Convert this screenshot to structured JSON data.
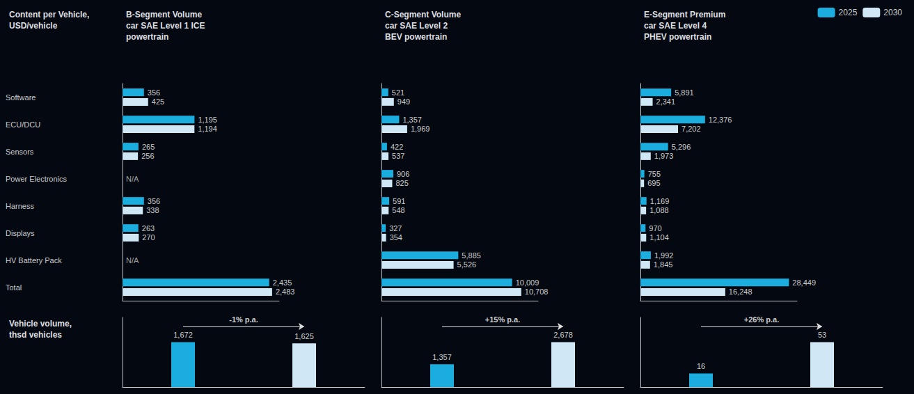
{
  "chart_data": [
    {
      "type": "bar",
      "orientation": "horizontal",
      "title": "B-Segment Volume\ncar SAE Level 1 ICE\npowertrain",
      "ylabel": "Content per Vehicle,\nUSD/vehicle",
      "categories": [
        "Software",
        "ECU/DCU",
        "Sensors",
        "Power Electronics",
        "Harness",
        "Displays",
        "HV Battery Pack",
        "Total"
      ],
      "series": [
        {
          "name": "2025",
          "color": "#1aadde",
          "values": [
            356,
            1195,
            265,
            null,
            356,
            263,
            null,
            2435
          ],
          "value_labels": [
            "356",
            "1,195",
            "265",
            null,
            "356",
            "263",
            null,
            "2,435"
          ]
        },
        {
          "name": "2030",
          "color": "#d0e8f5",
          "values": [
            425,
            1194,
            256,
            null,
            338,
            270,
            null,
            2483
          ],
          "value_labels": [
            "425",
            "1,194",
            "256",
            null,
            "338",
            "270",
            null,
            "2,483"
          ]
        }
      ],
      "annotations": [
        {
          "category": "Power Electronics",
          "text": "N/A"
        },
        {
          "category": "HV Battery Pack",
          "text": "N/A"
        }
      ],
      "xlim": [
        0,
        2600
      ],
      "grid": false,
      "data_labels": true,
      "tick_labels": "y"
    },
    {
      "type": "bar",
      "orientation": "horizontal",
      "title": "C-Segment Volume\ncar SAE Level 2\nBEV powertrain",
      "categories": [
        "Software",
        "ECU/DCU",
        "Sensors",
        "Power Electronics",
        "Harness",
        "Displays",
        "HV Battery Pack",
        "Total"
      ],
      "series": [
        {
          "name": "2025",
          "color": "#1aadde",
          "values": [
            521,
            1357,
            422,
            906,
            591,
            327,
            5885,
            10009
          ],
          "value_labels": [
            "521",
            "1,357",
            "422",
            "906",
            "591",
            "327",
            "5,885",
            "10,009"
          ]
        },
        {
          "name": "2030",
          "color": "#d0e8f5",
          "values": [
            949,
            1969,
            537,
            825,
            548,
            354,
            5526,
            10708
          ],
          "value_labels": [
            "949",
            "1,969",
            "537",
            "825",
            "548",
            "354",
            "5,526",
            "10,708"
          ]
        }
      ],
      "xlim": [
        0,
        12000
      ],
      "grid": false,
      "data_labels": true,
      "tick_labels": false
    },
    {
      "type": "bar",
      "orientation": "horizontal",
      "title": "E-Segment Premium\ncar SAE Level 4\nPHEV powertrain",
      "categories": [
        "Software",
        "ECU/DCU",
        "Sensors",
        "Power Electronics",
        "Harness",
        "Displays",
        "HV Battery Pack",
        "Total"
      ],
      "series": [
        {
          "name": "2025",
          "color": "#1aadde",
          "values": [
            5891,
            12376,
            5296,
            755,
            1169,
            970,
            1992,
            28449
          ],
          "value_labels": [
            "5,891",
            "12,376",
            "5,296",
            "755",
            "1,169",
            "970",
            "1,992",
            "28,449"
          ]
        },
        {
          "name": "2030",
          "color": "#d0e8f5",
          "values": [
            2341,
            7202,
            1973,
            695,
            1088,
            1104,
            1845,
            16248
          ],
          "value_labels": [
            "2,341",
            "7,202",
            "1,973",
            "695",
            "1,088",
            "1,104",
            "1,845",
            "16,248"
          ]
        }
      ],
      "xlim": [
        0,
        30000
      ],
      "grid": false,
      "data_labels": true,
      "tick_labels": false,
      "legend": "top-right"
    },
    {
      "type": "bar",
      "ylabel": "Vehicle volume,\nthsd vehicles",
      "categories": [
        null,
        null
      ],
      "values": [
        1672,
        1625
      ],
      "value_labels": [
        "1,672",
        "1,625"
      ],
      "colors": [
        "#1aadde",
        "#d0e8f5"
      ],
      "annotations": [
        {
          "text": "-1% p.a."
        }
      ],
      "ylim": [
        0,
        2591.6
      ],
      "grid": false,
      "data_labels": true,
      "tick_labels": false
    },
    {
      "type": "bar",
      "categories": [
        null,
        null
      ],
      "values": [
        1357,
        2678
      ],
      "value_labels": [
        "1,357",
        "2,678"
      ],
      "colors": [
        "#1aadde",
        "#d0e8f5"
      ],
      "annotations": [
        {
          "text": "+15% p.a."
        }
      ],
      "ylim": [
        0,
        4150.9
      ],
      "grid": false,
      "data_labels": true,
      "tick_labels": false
    },
    {
      "type": "bar",
      "categories": [
        null,
        null
      ],
      "values": [
        16,
        53
      ],
      "colors": [
        "#1aadde",
        "#d0e8f5"
      ],
      "annotations": [
        {
          "text": "+26% p.a."
        }
      ],
      "ylim": [
        0,
        82.15
      ],
      "grid": false,
      "data_labels": true,
      "tick_labels": false
    }
  ]
}
